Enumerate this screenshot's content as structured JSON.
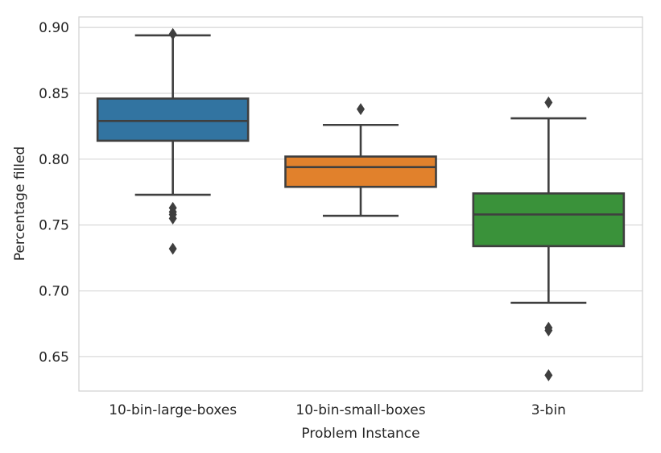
{
  "chart_data": {
    "type": "boxplot",
    "title": "",
    "xlabel": "Problem Instance",
    "ylabel": "Percentage filled",
    "ylim": [
      0.624,
      0.908
    ],
    "yticks": [
      0.65,
      0.7,
      0.75,
      0.8,
      0.85,
      0.9
    ],
    "ytick_labels": [
      "0.65",
      "0.70",
      "0.75",
      "0.80",
      "0.85",
      "0.90"
    ],
    "grid": true,
    "categories": [
      "10-bin-large-boxes",
      "10-bin-small-boxes",
      "3-bin"
    ],
    "boxes": [
      {
        "name": "10-bin-large-boxes",
        "color": "#3274a1",
        "whisker_low": 0.773,
        "q1": 0.814,
        "median": 0.829,
        "q3": 0.846,
        "whisker_high": 0.894,
        "outliers": [
          0.895,
          0.763,
          0.76,
          0.758,
          0.755,
          0.732
        ]
      },
      {
        "name": "10-bin-small-boxes",
        "color": "#e1812c",
        "whisker_low": 0.757,
        "q1": 0.779,
        "median": 0.794,
        "q3": 0.802,
        "whisker_high": 0.826,
        "outliers": [
          0.838
        ]
      },
      {
        "name": "3-bin",
        "color": "#3a923a",
        "whisker_low": 0.691,
        "q1": 0.734,
        "median": 0.758,
        "q3": 0.774,
        "whisker_high": 0.831,
        "outliers": [
          0.843,
          0.672,
          0.67,
          0.636
        ]
      }
    ]
  },
  "colors": {
    "line": "#3f3f3f",
    "grid": "#d6d6d6",
    "frame": "#d0d0d0"
  }
}
